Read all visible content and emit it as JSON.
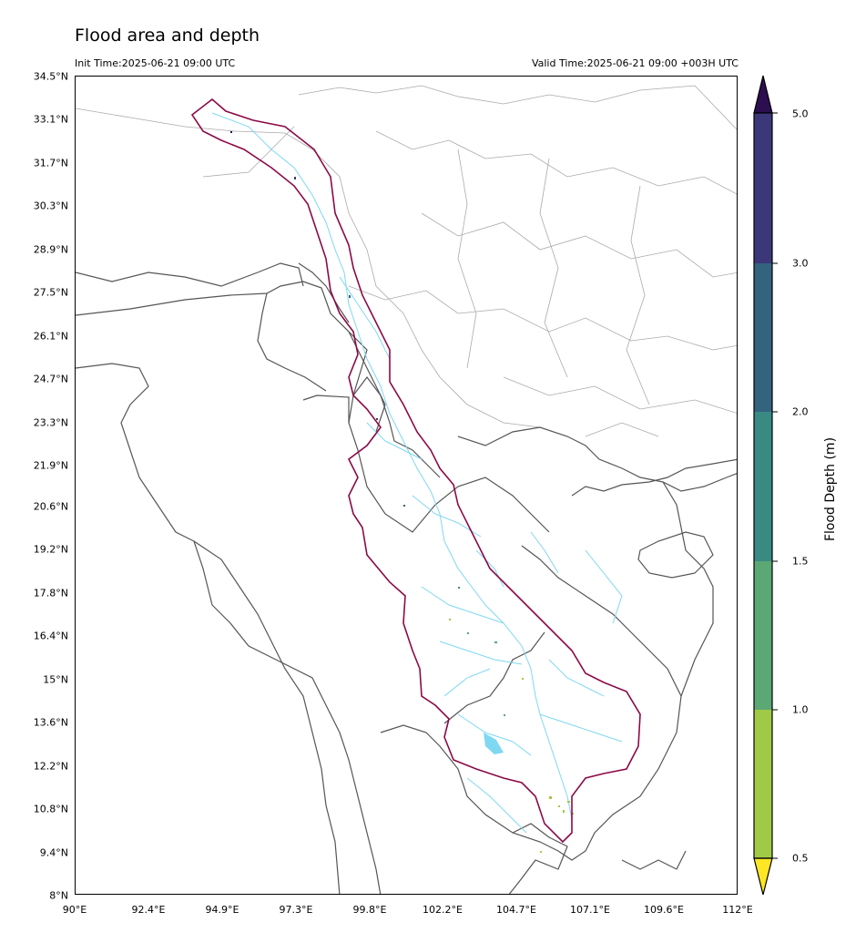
{
  "title": "Flood area and depth",
  "init_time": "Init Time:2025-06-21 09:00 UTC",
  "valid_time": "Valid Time:2025-06-21 09:00 +003H UTC",
  "y_ticks": [
    "34.5°N",
    "33.1°N",
    "31.7°N",
    "30.3°N",
    "28.9°N",
    "27.5°N",
    "26.1°N",
    "24.7°N",
    "23.3°N",
    "21.9°N",
    "20.6°N",
    "19.2°N",
    "17.8°N",
    "16.4°N",
    "15°N",
    "13.6°N",
    "12.2°N",
    "10.8°N",
    "9.4°N",
    "8°N"
  ],
  "x_ticks": [
    "90°E",
    "92.4°E",
    "94.9°E",
    "97.3°E",
    "99.8°E",
    "102.2°E",
    "104.7°E",
    "107.1°E",
    "109.6°E",
    "112°E"
  ],
  "colorbar": {
    "title": "Flood Depth (m)",
    "levels": [
      "0.5",
      "1.0",
      "1.5",
      "2.0",
      "3.0",
      "5.0"
    ],
    "colors": [
      "#fde725",
      "#a0c948",
      "#5ba874",
      "#3a8a84",
      "#34637f",
      "#3b3779",
      "#2d0e50"
    ]
  },
  "map": {
    "lon_range": [
      90,
      112
    ],
    "lat_range": [
      8,
      34.5
    ],
    "basin_outline_color": "#8b0a47",
    "country_border_color": "#555555",
    "province_border_color": "#aaaaaa",
    "river_color": "#7fd8f2"
  }
}
